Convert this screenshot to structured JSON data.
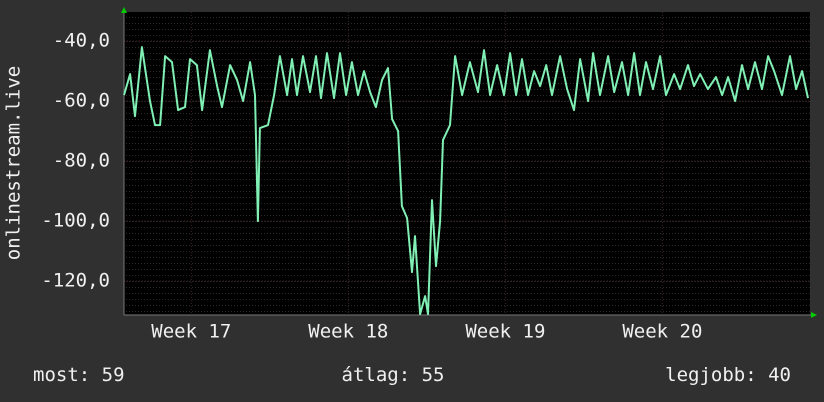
{
  "chart_data": {
    "type": "line",
    "ylabel": "onlinestream.live",
    "x": [
      0,
      0.27,
      0.49,
      0.8,
      1.16,
      1.38,
      1.61,
      1.83,
      2.14,
      2.41,
      2.72,
      2.94,
      3.25,
      3.48,
      3.83,
      4.15,
      4.37,
      4.73,
      5.04,
      5.31,
      5.62,
      5.84,
      5.97,
      6.06,
      6.42,
      6.69,
      6.95,
      7.27,
      7.49,
      7.71,
      7.98,
      8.29,
      8.56,
      8.78,
      9.05,
      9.36,
      9.63,
      9.9,
      10.16,
      10.43,
      10.7,
      10.97,
      11.23,
      11.5,
      11.77,
      11.95,
      12.22,
      12.39,
      12.62,
      12.84,
      12.97,
      13.2,
      13.42,
      13.55,
      13.73,
      13.91,
      14.09,
      14.22,
      14.53,
      14.76,
      15.07,
      15.42,
      15.78,
      16.05,
      16.32,
      16.63,
      16.94,
      17.21,
      17.48,
      17.74,
      18.01,
      18.28,
      18.55,
      18.82,
      19.08,
      19.44,
      19.75,
      20.06,
      20.33,
      20.69,
      20.91,
      21.22,
      21.58,
      21.85,
      22.2,
      22.47,
      22.74,
      23.0,
      23.27,
      23.58,
      23.9,
      24.16,
      24.52,
      24.79,
      25.14,
      25.41,
      25.68,
      26.03,
      26.39,
      26.66,
      26.93,
      27.24,
      27.55,
      27.82,
      28.13,
      28.44,
      28.71,
      28.98,
      29.33,
      29.69,
      29.96,
      30.23,
      30.49
    ],
    "series": [
      {
        "name": "onlinestream.live",
        "color": "#80f0b4",
        "values": [
          -58,
          -51,
          -65,
          -42,
          -60,
          -68,
          -68,
          -45,
          -47,
          -63,
          -62,
          -46,
          -48,
          -63,
          -43,
          -55,
          -62,
          -48,
          -53,
          -60,
          -47,
          -58,
          -100,
          -69,
          -68,
          -58,
          -45,
          -58,
          -46,
          -58,
          -45,
          -57,
          -45,
          -59,
          -44,
          -59,
          -44,
          -58,
          -47,
          -58,
          -50,
          -57,
          -62,
          -53,
          -49,
          -66,
          -70,
          -95,
          -99,
          -117,
          -105,
          -131,
          -125,
          -131,
          -93,
          -115,
          -100,
          -73,
          -68,
          -45,
          -58,
          -47,
          -57,
          -43,
          -58,
          -48,
          -58,
          -44,
          -58,
          -46,
          -58,
          -50,
          -55,
          -48,
          -58,
          -45,
          -56,
          -63,
          -46,
          -60,
          -44,
          -58,
          -45,
          -57,
          -47,
          -58,
          -44,
          -58,
          -47,
          -56,
          -45,
          -58,
          -51,
          -56,
          -48,
          -55,
          -51,
          -56,
          -52,
          -58,
          -52,
          -60,
          -48,
          -56,
          -47,
          -56,
          -45,
          -50,
          -58,
          -45,
          -56,
          -50,
          -59
        ]
      }
    ],
    "xlim": [
      0,
      30.58
    ],
    "xticks": [
      {
        "value": 3,
        "label": "Week 17"
      },
      {
        "value": 10,
        "label": "Week 18"
      },
      {
        "value": 17,
        "label": "Week 19"
      },
      {
        "value": 24,
        "label": "Week 20"
      }
    ],
    "ylim": [
      -131.3,
      -30.3
    ],
    "yticks": [
      {
        "value": -40,
        "label": "-40,0"
      },
      {
        "value": -60,
        "label": "-60,0"
      },
      {
        "value": -80,
        "label": "-80,0"
      },
      {
        "value": -100,
        "label": "-100,0"
      },
      {
        "value": -120,
        "label": "-120,0"
      }
    ],
    "grid": true,
    "stats": [
      {
        "label": "most:",
        "value": 59
      },
      {
        "label": "átlag:",
        "value": 55
      },
      {
        "label": "legjobb:",
        "value": 40
      }
    ]
  }
}
